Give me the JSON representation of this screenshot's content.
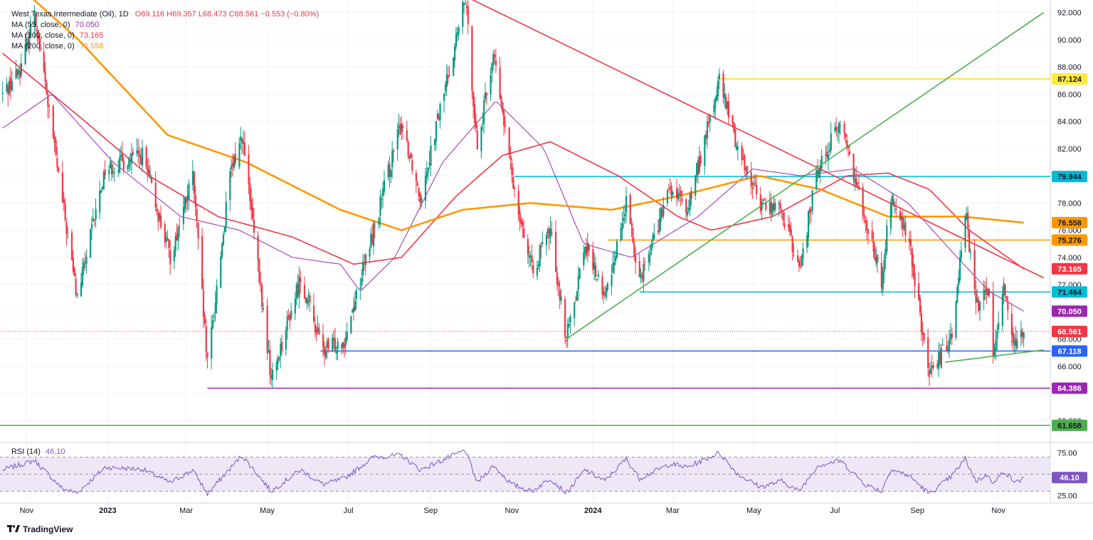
{
  "legend": {
    "symbol": "West Texas Intermediate (Oil), 1D",
    "ohlc": "O69.116  H69.357  L68.473  C68.561  −0.553 (−0.80%)",
    "ma55_label": "MA (55, close, 0)",
    "ma55_value": "70.050",
    "ma100_label": "MA (100, close, 0)",
    "ma100_value": "73.165",
    "ma200_label": "MA (200, close, 0)",
    "ma200_value": "76.558"
  },
  "rsi_legend": {
    "label": "RSI (14)",
    "value": "46.10"
  },
  "branding": {
    "name": "TradingView"
  },
  "colors": {
    "up": "#089981",
    "down": "#f23645",
    "ma55": "#9c27b0",
    "ma100": "#f23645",
    "ma200": "#ff9800",
    "rsi": "#7e57c2",
    "rsi_band": "#ede7f6"
  },
  "chart_data": {
    "type": "candlestick",
    "title": "West Texas Intermediate (Oil), 1D",
    "x_axis_labels": [
      "Nov",
      "2023",
      "Mar",
      "May",
      "Jul",
      "Sep",
      "Nov",
      "2024",
      "Mar",
      "May",
      "Jul",
      "Sep",
      "Nov"
    ],
    "y_axis_ticks": [
      "92.000",
      "90.000",
      "88.000",
      "86.000",
      "84.000",
      "82.000",
      "78.000",
      "76.000",
      "74.000",
      "72.000",
      "68.000",
      "66.000",
      "62.000"
    ],
    "ylim": [
      60.5,
      92.5
    ],
    "price_path": [
      {
        "date": "2022-10-14",
        "price": 86.0
      },
      {
        "date": "2022-10-28",
        "price": 88.0
      },
      {
        "date": "2022-11-07",
        "price": 92.0
      },
      {
        "date": "2022-11-28",
        "price": 78.0
      },
      {
        "date": "2022-12-09",
        "price": 71.0
      },
      {
        "date": "2022-12-30",
        "price": 80.5
      },
      {
        "date": "2023-01-27",
        "price": 81.5
      },
      {
        "date": "2023-02-17",
        "price": 74.0
      },
      {
        "date": "2023-03-06",
        "price": 80.0
      },
      {
        "date": "2023-03-17",
        "price": 66.0
      },
      {
        "date": "2023-04-03",
        "price": 80.0
      },
      {
        "date": "2023-04-12",
        "price": 83.0
      },
      {
        "date": "2023-05-04",
        "price": 65.0
      },
      {
        "date": "2023-05-26",
        "price": 72.5
      },
      {
        "date": "2023-06-12",
        "price": 67.1
      },
      {
        "date": "2023-06-28",
        "price": 68.0
      },
      {
        "date": "2023-07-20",
        "price": 76.0
      },
      {
        "date": "2023-08-10",
        "price": 84.0
      },
      {
        "date": "2023-08-24",
        "price": 78.5
      },
      {
        "date": "2023-09-27",
        "price": 93.0
      },
      {
        "date": "2023-10-06",
        "price": 82.0
      },
      {
        "date": "2023-10-18",
        "price": 89.0
      },
      {
        "date": "2023-11-01",
        "price": 80.0
      },
      {
        "date": "2023-11-16",
        "price": 73.0
      },
      {
        "date": "2023-11-30",
        "price": 76.0
      },
      {
        "date": "2023-12-12",
        "price": 68.0
      },
      {
        "date": "2023-12-26",
        "price": 75.0
      },
      {
        "date": "2024-01-10",
        "price": 71.0
      },
      {
        "date": "2024-01-26",
        "price": 78.0
      },
      {
        "date": "2024-02-05",
        "price": 72.5
      },
      {
        "date": "2024-02-28",
        "price": 79.0
      },
      {
        "date": "2024-03-12",
        "price": 77.5
      },
      {
        "date": "2024-04-05",
        "price": 87.0
      },
      {
        "date": "2024-04-19",
        "price": 82.0
      },
      {
        "date": "2024-05-06",
        "price": 78.0
      },
      {
        "date": "2024-05-22",
        "price": 77.5
      },
      {
        "date": "2024-06-04",
        "price": 73.0
      },
      {
        "date": "2024-06-18",
        "price": 80.5
      },
      {
        "date": "2024-07-05",
        "price": 84.0
      },
      {
        "date": "2024-07-24",
        "price": 77.0
      },
      {
        "date": "2024-08-05",
        "price": 72.0
      },
      {
        "date": "2024-08-12",
        "price": 78.5
      },
      {
        "date": "2024-08-26",
        "price": 75.0
      },
      {
        "date": "2024-09-10",
        "price": 65.0
      },
      {
        "date": "2024-09-27",
        "price": 68.5
      },
      {
        "date": "2024-10-07",
        "price": 77.5
      },
      {
        "date": "2024-10-15",
        "price": 70.5
      },
      {
        "date": "2024-10-25",
        "price": 71.5
      },
      {
        "date": "2024-10-28",
        "price": 67.0
      },
      {
        "date": "2024-11-05",
        "price": 72.0
      },
      {
        "date": "2024-11-14",
        "price": 67.0
      },
      {
        "date": "2024-11-20",
        "price": 68.561
      }
    ],
    "moving_averages": [
      {
        "name": "MA (55, close, 0)",
        "color": "#9c27b0",
        "path": [
          {
            "date": "2022-10-14",
            "price": 83.5
          },
          {
            "date": "2022-11-20",
            "price": 86.0
          },
          {
            "date": "2023-01-05",
            "price": 81.0
          },
          {
            "date": "2023-02-25",
            "price": 77.0
          },
          {
            "date": "2023-04-10",
            "price": 76.0
          },
          {
            "date": "2023-05-20",
            "price": 74.0
          },
          {
            "date": "2023-06-25",
            "price": 73.5
          },
          {
            "date": "2023-07-10",
            "price": 71.5
          },
          {
            "date": "2023-08-05",
            "price": 74.0
          },
          {
            "date": "2023-09-10",
            "price": 81.0
          },
          {
            "date": "2023-10-20",
            "price": 85.5
          },
          {
            "date": "2023-11-25",
            "price": 82.0
          },
          {
            "date": "2023-12-25",
            "price": 75.0
          },
          {
            "date": "2024-01-30",
            "price": 74.0
          },
          {
            "date": "2024-03-20",
            "price": 77.0
          },
          {
            "date": "2024-04-30",
            "price": 80.5
          },
          {
            "date": "2024-06-05",
            "price": 80.0
          },
          {
            "date": "2024-07-15",
            "price": 80.5
          },
          {
            "date": "2024-08-25",
            "price": 78.0
          },
          {
            "date": "2024-10-01",
            "price": 74.0
          },
          {
            "date": "2024-10-25",
            "price": 71.5
          },
          {
            "date": "2024-11-20",
            "price": 70.05
          }
        ]
      },
      {
        "name": "MA (100, close, 0)",
        "color": "#f23645",
        "path": [
          {
            "date": "2022-10-14",
            "price": 89.0
          },
          {
            "date": "2022-12-15",
            "price": 84.0
          },
          {
            "date": "2023-02-01",
            "price": 80.0
          },
          {
            "date": "2023-03-25",
            "price": 77.0
          },
          {
            "date": "2023-05-20",
            "price": 75.5
          },
          {
            "date": "2023-07-05",
            "price": 73.5
          },
          {
            "date": "2023-08-10",
            "price": 74.0
          },
          {
            "date": "2023-09-20",
            "price": 78.5
          },
          {
            "date": "2023-10-25",
            "price": 81.5
          },
          {
            "date": "2023-11-30",
            "price": 82.5
          },
          {
            "date": "2024-01-20",
            "price": 80.0
          },
          {
            "date": "2024-03-05",
            "price": 77.0
          },
          {
            "date": "2024-03-30",
            "price": 76.0
          },
          {
            "date": "2024-05-15",
            "price": 77.0
          },
          {
            "date": "2024-07-10",
            "price": 80.0
          },
          {
            "date": "2024-08-10",
            "price": 80.2
          },
          {
            "date": "2024-09-10",
            "price": 79.0
          },
          {
            "date": "2024-10-10",
            "price": 76.0
          },
          {
            "date": "2024-11-20",
            "price": 73.165
          }
        ]
      },
      {
        "name": "MA (200, close, 0)",
        "color": "#ff9800",
        "path": [
          {
            "date": "2022-10-14",
            "price": 95.0
          },
          {
            "date": "2022-12-10",
            "price": 90.0
          },
          {
            "date": "2023-02-15",
            "price": 83.0
          },
          {
            "date": "2023-04-15",
            "price": 81.0
          },
          {
            "date": "2023-06-25",
            "price": 77.5
          },
          {
            "date": "2023-08-10",
            "price": 76.0
          },
          {
            "date": "2023-09-25",
            "price": 77.5
          },
          {
            "date": "2023-11-15",
            "price": 78.0
          },
          {
            "date": "2024-01-15",
            "price": 77.5
          },
          {
            "date": "2024-03-05",
            "price": 78.5
          },
          {
            "date": "2024-05-05",
            "price": 80.0
          },
          {
            "date": "2024-06-20",
            "price": 79.0
          },
          {
            "date": "2024-08-10",
            "price": 77.0
          },
          {
            "date": "2024-10-05",
            "price": 77.0
          },
          {
            "date": "2024-11-20",
            "price": 76.558
          }
        ]
      }
    ],
    "horizontal_levels": [
      {
        "price": 87.124,
        "label": "87.124",
        "color": "#f5e10a",
        "label_bg": "#ffeb3b",
        "label_color": "#131722",
        "from": "2024-04-05"
      },
      {
        "price": 79.944,
        "label": "79.944",
        "color": "#00bcd4",
        "label_bg": "#00bcd4",
        "label_color": "#131722",
        "from": "2023-11-03"
      },
      {
        "price": 75.276,
        "label": "75.276",
        "color": "#ff9800",
        "label_bg": "#ff9800",
        "label_color": "#131722",
        "from": "2024-01-12"
      },
      {
        "price": 71.464,
        "label": "71.464",
        "color": "#00bcd4",
        "label_bg": "#00bcd4",
        "label_color": "#131722",
        "from": "2024-02-05"
      },
      {
        "price": 67.118,
        "label": "67.118",
        "color": "#2962ff",
        "label_bg": "#2962ff",
        "label_color": "#ffffff",
        "from": "2023-06-10"
      },
      {
        "price": 64.386,
        "label": "64.386",
        "color": "#9c27b0",
        "label_bg": "#9c27b0",
        "label_color": "#ffffff",
        "from": "2023-03-17"
      },
      {
        "price": 61.658,
        "label": "61.658",
        "color": "#4caf50",
        "label_bg": "#4caf50",
        "label_color": "#131722",
        "from": "2022-10-10"
      }
    ],
    "price_labels": [
      {
        "price": 76.558,
        "label": "76.558",
        "bg": "#ff9800",
        "color": "#131722"
      },
      {
        "price": 73.165,
        "label": "73.165",
        "bg": "#f23645",
        "color": "#ffffff"
      },
      {
        "price": 70.05,
        "label": "70.050",
        "bg": "#9c27b0",
        "color": "#ffffff"
      },
      {
        "price": 68.561,
        "label": "68.561",
        "bg": "#f23645",
        "color": "#ffffff"
      }
    ],
    "current_price": 68.561,
    "trendlines": [
      {
        "color": "#f23645",
        "from": {
          "date": "2023-10-01",
          "price": 93.0
        },
        "to": {
          "date": "2024-12-05",
          "price": 72.5
        }
      },
      {
        "color": "#4caf50",
        "from": {
          "date": "2023-12-12",
          "price": 68.0
        },
        "to": {
          "date": "2024-12-05",
          "price": 92.0
        }
      },
      {
        "color": "#4caf50",
        "from": {
          "date": "2024-09-22",
          "price": 66.3
        },
        "to": {
          "date": "2024-12-05",
          "price": 67.2
        }
      }
    ],
    "rsi": {
      "label": "RSI (14)",
      "value": 46.1,
      "y_axis_ticks": [
        "75.00",
        "25.00"
      ],
      "levels": [
        30,
        50,
        70
      ],
      "ylim": [
        18,
        82
      ],
      "path": [
        {
          "date": "2022-10-14",
          "rsi": 55
        },
        {
          "date": "2022-11-07",
          "rsi": 66
        },
        {
          "date": "2022-11-28",
          "rsi": 33
        },
        {
          "date": "2022-12-09",
          "rsi": 28
        },
        {
          "date": "2022-12-30",
          "rsi": 58
        },
        {
          "date": "2023-01-27",
          "rsi": 56
        },
        {
          "date": "2023-02-17",
          "rsi": 40
        },
        {
          "date": "2023-03-06",
          "rsi": 55
        },
        {
          "date": "2023-03-17",
          "rsi": 27
        },
        {
          "date": "2023-04-12",
          "rsi": 72
        },
        {
          "date": "2023-05-04",
          "rsi": 30
        },
        {
          "date": "2023-05-26",
          "rsi": 55
        },
        {
          "date": "2023-06-12",
          "rsi": 38
        },
        {
          "date": "2023-06-28",
          "rsi": 45
        },
        {
          "date": "2023-07-20",
          "rsi": 70
        },
        {
          "date": "2023-08-10",
          "rsi": 72
        },
        {
          "date": "2023-08-24",
          "rsi": 55
        },
        {
          "date": "2023-09-27",
          "rsi": 78
        },
        {
          "date": "2023-10-06",
          "rsi": 40
        },
        {
          "date": "2023-10-18",
          "rsi": 60
        },
        {
          "date": "2023-11-01",
          "rsi": 38
        },
        {
          "date": "2023-11-16",
          "rsi": 30
        },
        {
          "date": "2023-11-30",
          "rsi": 45
        },
        {
          "date": "2023-12-12",
          "rsi": 28
        },
        {
          "date": "2023-12-26",
          "rsi": 55
        },
        {
          "date": "2024-01-10",
          "rsi": 42
        },
        {
          "date": "2024-01-26",
          "rsi": 68
        },
        {
          "date": "2024-02-05",
          "rsi": 45
        },
        {
          "date": "2024-02-28",
          "rsi": 62
        },
        {
          "date": "2024-03-12",
          "rsi": 58
        },
        {
          "date": "2024-04-05",
          "rsi": 75
        },
        {
          "date": "2024-04-19",
          "rsi": 50
        },
        {
          "date": "2024-05-06",
          "rsi": 35
        },
        {
          "date": "2024-05-22",
          "rsi": 42
        },
        {
          "date": "2024-06-04",
          "rsi": 30
        },
        {
          "date": "2024-06-18",
          "rsi": 60
        },
        {
          "date": "2024-07-05",
          "rsi": 66
        },
        {
          "date": "2024-07-24",
          "rsi": 38
        },
        {
          "date": "2024-08-05",
          "rsi": 30
        },
        {
          "date": "2024-08-12",
          "rsi": 56
        },
        {
          "date": "2024-08-26",
          "rsi": 48
        },
        {
          "date": "2024-09-10",
          "rsi": 27
        },
        {
          "date": "2024-09-27",
          "rsi": 48
        },
        {
          "date": "2024-10-07",
          "rsi": 68
        },
        {
          "date": "2024-10-15",
          "rsi": 42
        },
        {
          "date": "2024-10-25",
          "rsi": 50
        },
        {
          "date": "2024-10-28",
          "rsi": 38
        },
        {
          "date": "2024-11-05",
          "rsi": 54
        },
        {
          "date": "2024-11-14",
          "rsi": 40
        },
        {
          "date": "2024-11-20",
          "rsi": 46.1
        }
      ]
    }
  }
}
